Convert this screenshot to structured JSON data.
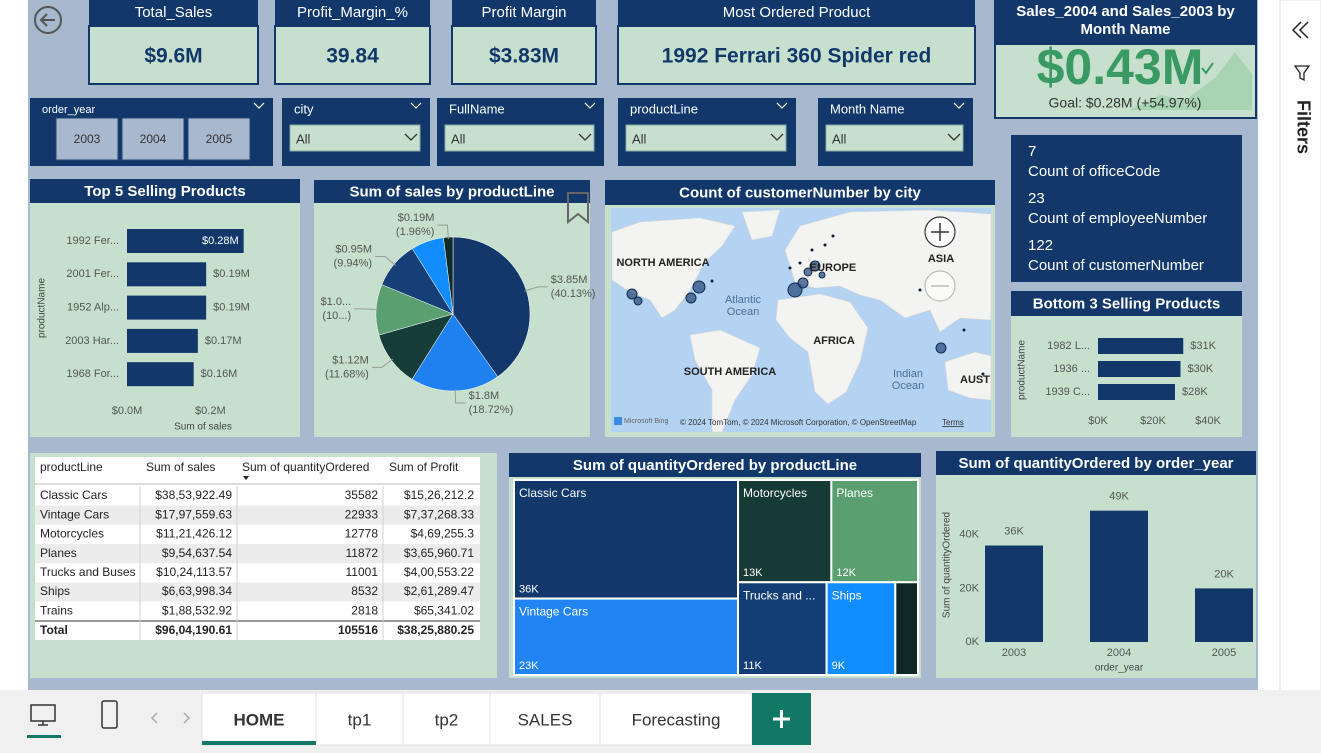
{
  "kpi_cards": [
    {
      "title": "Total_Sales",
      "value": "$9.6M"
    },
    {
      "title": "Profit_Margin_%",
      "value": "39.84"
    },
    {
      "title": "Profit Margin",
      "value": "$3.83M"
    },
    {
      "title": "Most Ordered Product",
      "value": "1992 Ferrari 360 Spider red"
    }
  ],
  "kpi_goal": {
    "title": "Sales_2004 and Sales_2003 by Month Name",
    "value": "$0.43M",
    "goal": "Goal: $0.28M (+54.97%)"
  },
  "slicers": [
    {
      "title": "order_year",
      "options": [
        "2003",
        "2004",
        "2005"
      ]
    },
    {
      "title": "city",
      "selected": "All"
    },
    {
      "title": "FullName",
      "selected": "All"
    },
    {
      "title": "productLine",
      "selected": "All"
    },
    {
      "title": "Month Name",
      "selected": "All"
    }
  ],
  "multi_card": [
    {
      "value": "7",
      "label": "Count of officeCode"
    },
    {
      "value": "23",
      "label": "Count of employeeNumber"
    },
    {
      "value": "122",
      "label": "Count of customerNumber"
    }
  ],
  "chart_data": [
    {
      "type": "hbar",
      "title": "Top 5 Selling Products",
      "x_axis_label": "Sum of sales",
      "y_axis_label": "productName",
      "categories": [
        "1992 Fer...",
        "2001 Fer...",
        "1952 Alp...",
        "2003 Har...",
        "1968 For..."
      ],
      "values": [
        0.28,
        0.19,
        0.19,
        0.17,
        0.16
      ],
      "value_labels": [
        "$0.28M",
        "$0.19M",
        "$0.19M",
        "$0.17M",
        "$0.16M"
      ],
      "color": "#12386b",
      "xlim": [
        0,
        0.3
      ],
      "xticks": [
        {
          "value": 0,
          "label": "$0.0M"
        },
        {
          "value": 0.2,
          "label": "$0.2M"
        }
      ]
    },
    {
      "type": "pie",
      "title": "Sum of sales by productLine",
      "values": [
        3.85,
        1.8,
        1.12,
        1.02,
        0.95,
        0.66,
        0.19
      ],
      "value_labels": [
        "$3.85M",
        "$1.8M",
        "$1.12M",
        "$1.0...",
        "$0.95M",
        null,
        "$0.19M"
      ],
      "percent_labels": [
        "(40.13%)",
        "(18.72%)",
        "(11.68%)",
        "(10...)",
        "(9.94%)",
        null,
        "(1.96%)"
      ],
      "colors": [
        "#12386b",
        "#1f80f0",
        "#173d3a",
        "#5a9f70",
        "#163f78",
        "#118dff",
        "#0f2b29"
      ]
    },
    {
      "type": "hbar",
      "title": "Bottom 3 Selling Products",
      "y_axis_label": "productName",
      "categories": [
        "1982 L...",
        "1936 ...",
        "1939 C..."
      ],
      "values": [
        31000,
        30000,
        28000
      ],
      "value_labels": [
        "$31K",
        "$30K",
        "$28K"
      ],
      "color": "#12386b",
      "xlim": [
        0,
        40000
      ],
      "xticks": [
        {
          "value": 0,
          "label": "$0K"
        },
        {
          "value": 20000,
          "label": "$20K"
        },
        {
          "value": 40000,
          "label": "$40K"
        }
      ]
    },
    {
      "type": "treemap",
      "title": "Sum of quantityOrdered by productLine",
      "categories": [
        "Classic Cars",
        "Vintage Cars",
        "Motorcycles",
        "Planes",
        "Trucks and ...",
        "Ships",
        null
      ],
      "values": [
        35582,
        22933,
        12778,
        11872,
        11001,
        8532,
        2818
      ],
      "value_labels": [
        "36K",
        "23K",
        "13K",
        "12K",
        "11K",
        "9K",
        null
      ],
      "colors": [
        "#12386b",
        "#2184f2",
        "#163a35",
        "#5a9f70",
        "#133d75",
        "#118dff",
        "#0f2a26"
      ]
    },
    {
      "type": "bar",
      "title": "Sum of quantityOrdered by order_year",
      "x_axis_label": "order_year",
      "y_axis_label": "Sum of quantityOrdered",
      "categories": [
        "2003",
        "2004",
        "2005"
      ],
      "values": [
        36000,
        49000,
        20000
      ],
      "value_labels": [
        "36K",
        "49K",
        "20K"
      ],
      "color": "#12386b",
      "ylim": [
        0,
        50000
      ],
      "yticks": [
        {
          "value": 0,
          "label": "0K"
        },
        {
          "value": 20000,
          "label": "20K"
        },
        {
          "value": 40000,
          "label": "40K"
        }
      ]
    }
  ],
  "map": {
    "title": "Count of customerNumber by city",
    "labels": [
      "NORTH AMERICA",
      "EUROPE",
      "ASIA",
      "AFRICA",
      "SOUTH AMERICA",
      "AUST"
    ],
    "ocean_labels": [
      [
        "Atlantic",
        "Ocean"
      ],
      [
        "Indian",
        "Ocean"
      ]
    ],
    "provider": "Microsoft Bing",
    "attribution": "© 2024 TomTom, © 2024 Microsoft Corporation, © OpenStreetMap",
    "terms": "Terms"
  },
  "table": {
    "columns": [
      "productLine",
      "Sum of sales",
      "Sum of quantityOrdered",
      "Sum of Profit"
    ],
    "rows": [
      [
        "Classic Cars",
        "$38,53,922.49",
        "35582",
        "$15,26,212.2"
      ],
      [
        "Vintage Cars",
        "$17,97,559.63",
        "22933",
        "$7,37,268.33"
      ],
      [
        "Motorcycles",
        "$11,21,426.12",
        "12778",
        "$4,69,255.3"
      ],
      [
        "Planes",
        "$9,54,637.54",
        "11872",
        "$3,65,960.71"
      ],
      [
        "Trucks and Buses",
        "$10,24,113.57",
        "11001",
        "$4,00,553.22"
      ],
      [
        "Ships",
        "$6,63,998.34",
        "8532",
        "$2,61,289.47"
      ],
      [
        "Trains",
        "$1,88,532.92",
        "2818",
        "$65,341.02"
      ]
    ],
    "total": [
      "Total",
      "$96,04,190.61",
      "105516",
      "$38,25,880.25"
    ]
  },
  "navigation": {
    "tabs": [
      "HOME",
      "tp1",
      "tp2",
      "SALES",
      "Forecasting"
    ]
  },
  "filters_pane": {
    "title": "Filters"
  }
}
